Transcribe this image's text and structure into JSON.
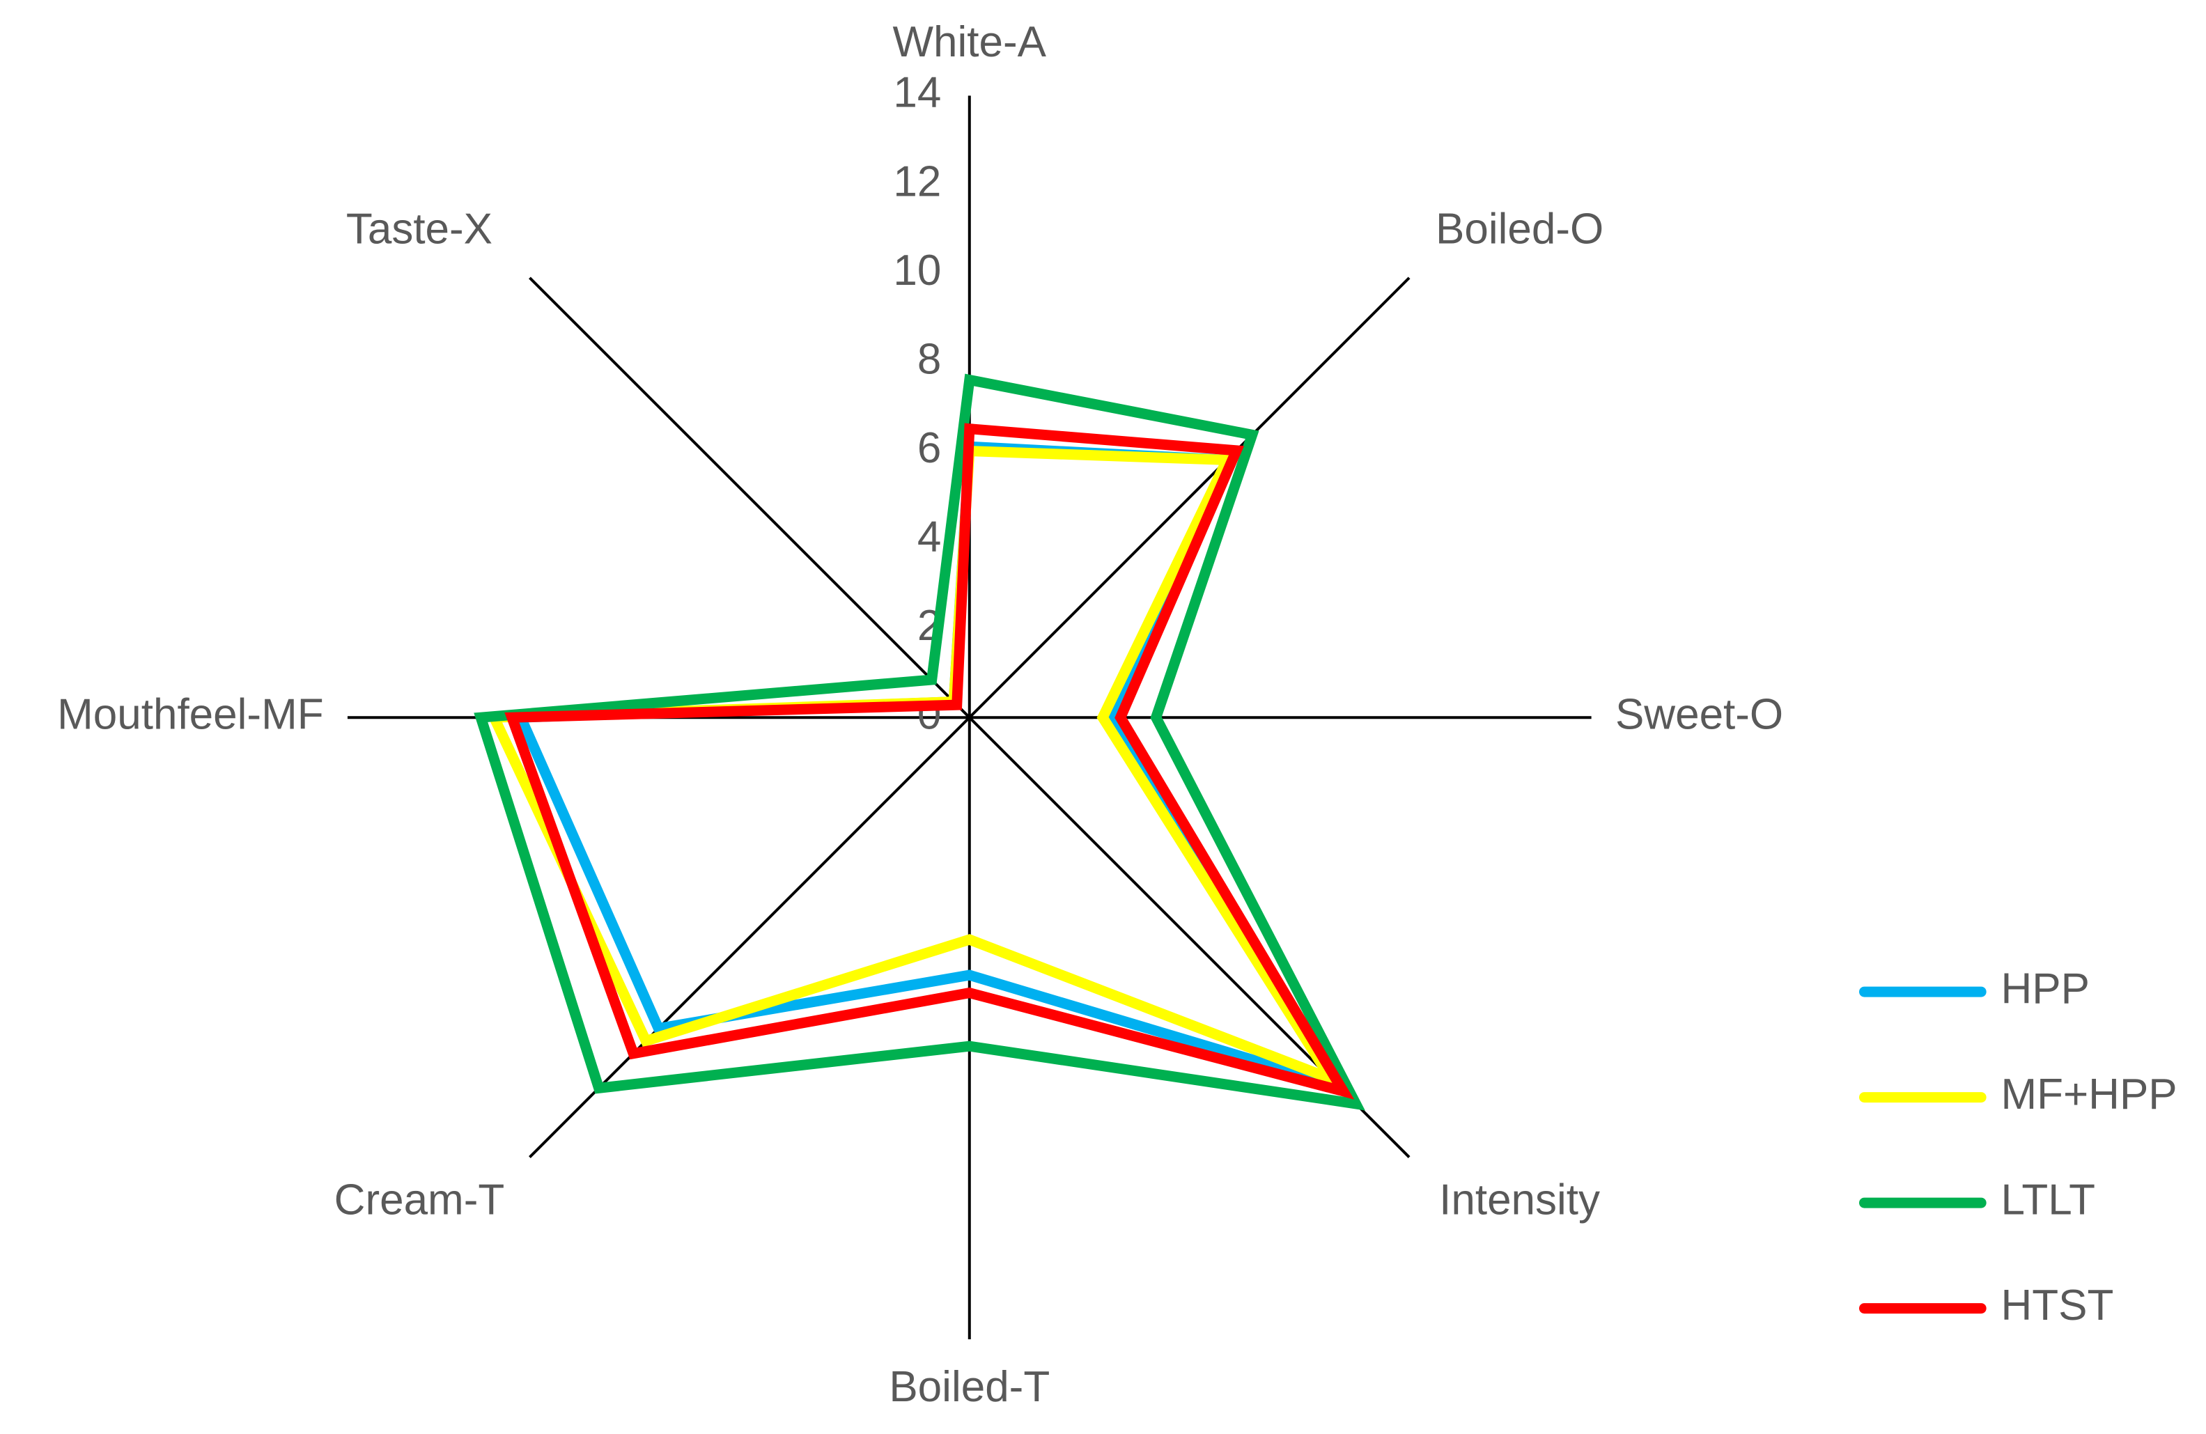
{
  "chart_data": {
    "type": "radar",
    "categories": [
      "White-A",
      "Boiled-O",
      "Sweet-O",
      "Intensity",
      "Boiled-T",
      "Cream-T",
      "Mouthfeel-MF",
      "Taste-X"
    ],
    "ylim": [
      0,
      14
    ],
    "yticks": [
      0,
      2,
      4,
      6,
      8,
      10,
      12,
      14
    ],
    "legend": "right",
    "series": [
      {
        "name": "HPP",
        "color": "#00b0f0",
        "values": [
          6.1,
          8.2,
          3.2,
          11.7,
          5.8,
          9.9,
          10.1,
          0.5
        ]
      },
      {
        "name": "MF+HPP",
        "color": "#ffff00",
        "values": [
          6.0,
          8.2,
          3.0,
          11.5,
          5.0,
          10.3,
          10.7,
          0.5
        ]
      },
      {
        "name": "LTLT",
        "color": "#00b050",
        "values": [
          7.6,
          9.0,
          4.2,
          12.3,
          7.4,
          11.8,
          11.0,
          1.2
        ]
      },
      {
        "name": "HTST",
        "color": "#ff0000",
        "values": [
          6.5,
          8.5,
          3.4,
          11.9,
          6.2,
          10.7,
          10.3,
          0.4
        ]
      }
    ]
  }
}
